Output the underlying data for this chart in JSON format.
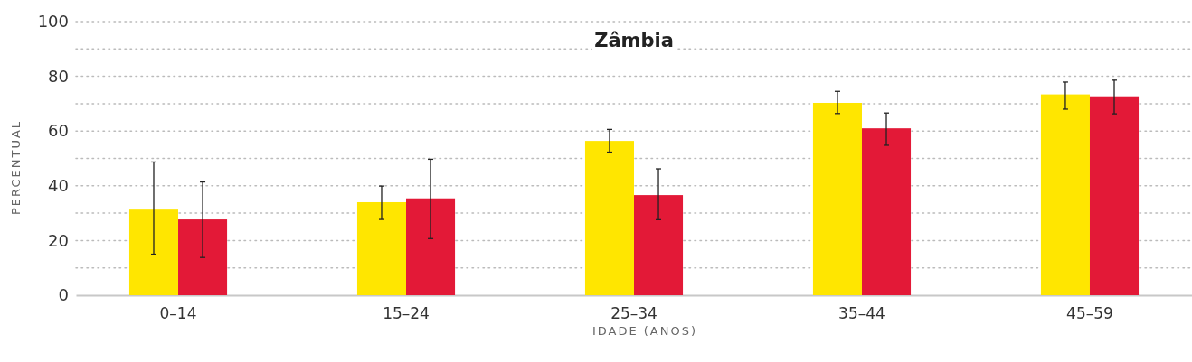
{
  "chart_data": {
    "type": "bar",
    "title": "Zâmbia",
    "xlabel": "IDADE (ANOS)",
    "ylabel": "PERCENTUAL",
    "categories": [
      "0–14",
      "15–24",
      "25–34",
      "35–44",
      "45–59"
    ],
    "series": [
      {
        "color": "#ffe600",
        "values": [
          31.3,
          34,
          56.4,
          70.3,
          73.4
        ],
        "errors": [
          [
            15,
            48.7
          ],
          [
            27.7,
            39.9
          ],
          [
            52.3,
            60.6
          ],
          [
            66.4,
            74.5
          ],
          [
            68,
            77.9
          ]
        ]
      },
      {
        "color": "#e31937",
        "values": [
          27.7,
          35.4,
          36.6,
          61,
          72.7
        ],
        "errors": [
          [
            13.8,
            41.4
          ],
          [
            20.7,
            49.7
          ],
          [
            27.6,
            46.2
          ],
          [
            54.8,
            66.6
          ],
          [
            66.3,
            78.6
          ]
        ]
      }
    ],
    "ylim": [
      0,
      100
    ],
    "yticks": [
      0,
      {
        "value": 10,
        "label": null
      },
      20,
      {
        "value": 30,
        "label": null
      },
      40,
      {
        "value": 50,
        "label": null
      },
      60,
      {
        "value": 70,
        "label": null
      },
      80,
      {
        "value": 90,
        "label": null
      },
      100
    ],
    "grid": "y"
  }
}
